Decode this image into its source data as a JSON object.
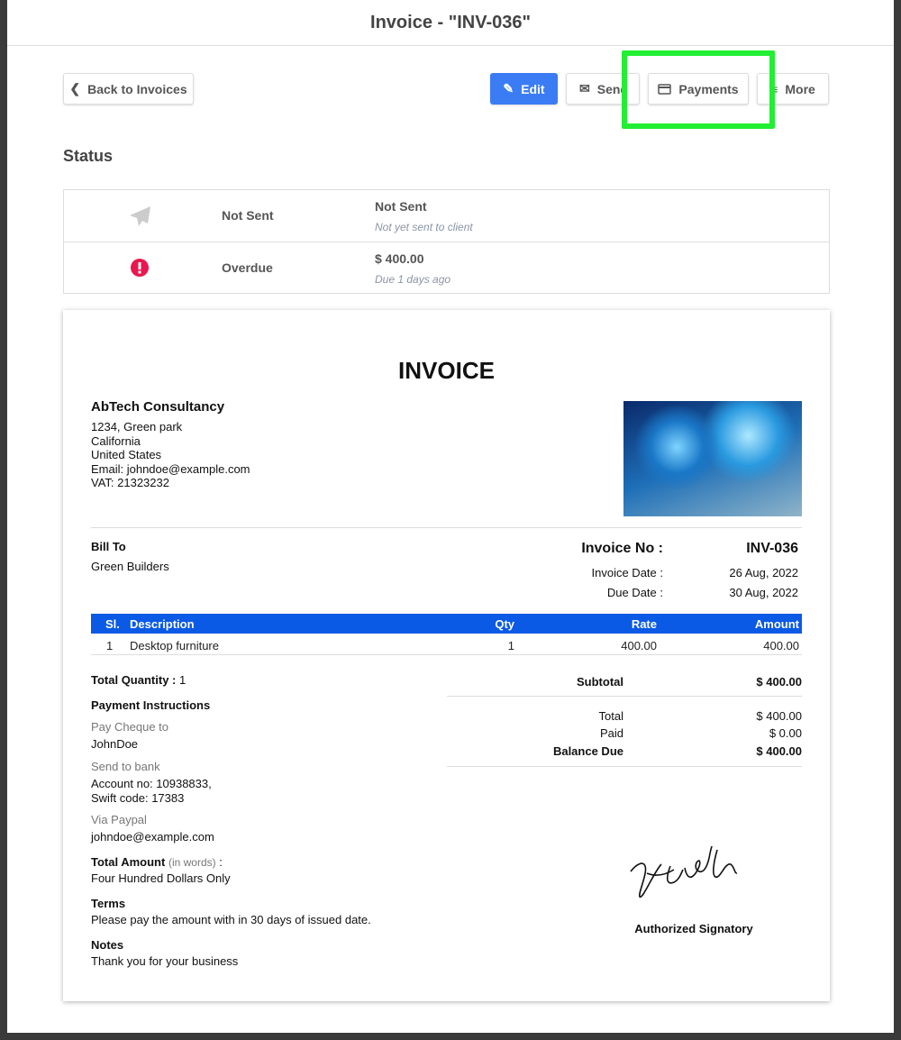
{
  "header": {
    "title": "Invoice - \"INV-036\""
  },
  "toolbar": {
    "back": "Back to Invoices",
    "edit": "Edit",
    "send": "Send",
    "payments": "Payments",
    "more": "More"
  },
  "status": {
    "title": "Status",
    "rows": [
      {
        "icon": "paper-plane-icon",
        "label": "Not Sent",
        "value": "Not Sent",
        "sub": "Not yet sent to client"
      },
      {
        "icon": "exclamation-circle-icon",
        "label": "Overdue",
        "value": "$ 400.00",
        "sub": "Due 1 days ago"
      }
    ]
  },
  "colors": {
    "primary": "#3b7cf4",
    "table_header": "#0a5ae6",
    "overdue": "#e8184f",
    "highlight": "#22ee33"
  },
  "invoice": {
    "heading": "INVOICE",
    "company": {
      "name": "AbTech Consultancy",
      "lines": [
        "1234, Green park",
        "California",
        "United States",
        "Email: johndoe@example.com",
        "VAT: 21323232"
      ]
    },
    "bill_to_label": "Bill To",
    "bill_to": "Green Builders",
    "invoice_no_label": "Invoice No :",
    "invoice_no": "INV-036",
    "invoice_date_label": "Invoice Date :",
    "invoice_date": "26 Aug, 2022",
    "due_date_label": "Due Date :",
    "due_date": "30 Aug, 2022",
    "table": {
      "headers": [
        "Sl.",
        "Description",
        "Qty",
        "Rate",
        "Amount"
      ],
      "rows": [
        [
          "1",
          "Desktop furniture",
          "1",
          "400.00",
          "400.00"
        ]
      ]
    },
    "total_qty_label": "Total Quantity :",
    "total_qty": "1",
    "subtotal_label": "Subtotal",
    "subtotal": "$ 400.00",
    "total_label": "Total",
    "total": "$ 400.00",
    "paid_label": "Paid",
    "paid": "$ 0.00",
    "balance_label": "Balance Due",
    "balance": "$ 400.00",
    "payment_title": "Payment Instructions",
    "cheque_label": "Pay Cheque to",
    "cheque": "JohnDoe",
    "bank_label": "Send to bank",
    "bank1": "Account no: 10938833,",
    "bank2": "Swift code: 17383",
    "paypal_label": "Via Paypal",
    "paypal": "johndoe@example.com",
    "words_label": "Total Amount",
    "words_hint": "(in words)",
    "words_colon": " :",
    "words": "Four Hundred Dollars Only",
    "terms_label": "Terms",
    "terms": "Please pay the amount with in 30 days of issued date.",
    "notes_label": "Notes",
    "notes": "Thank you for your business",
    "signatory": "Authorized Signatory"
  }
}
